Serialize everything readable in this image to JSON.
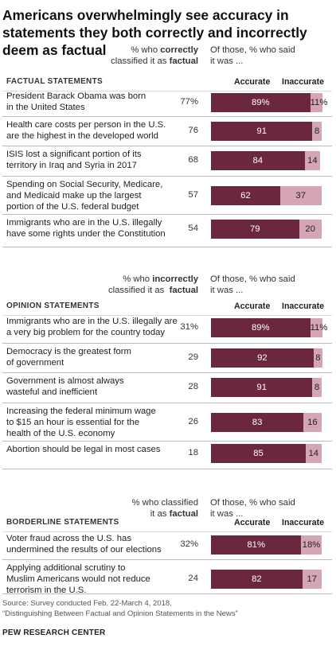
{
  "chart_data": {
    "type": "bar",
    "title": "Americans overwhelmingly see accuracy in statements they both correctly and incorrectly deem as factual",
    "legend": [
      "Accurate",
      "Inaccurate"
    ],
    "colors": {
      "accurate": "#6b2740",
      "inaccurate": "#d4a5b3"
    },
    "sections": [
      {
        "label": "FACTUAL STATEMENTS",
        "header_left": [
          "% who ",
          "correctly",
          "classified it as ",
          "factual"
        ],
        "header_right": [
          "Of those, % who said",
          "it was ..."
        ],
        "col_accurate": "Accurate",
        "col_inaccurate": "Inaccurate",
        "rows": [
          {
            "statement": [
              "President Barack Obama was born",
              "in the United States"
            ],
            "pct": "77%",
            "accurate": 89,
            "inaccurate": 11,
            "acc_label": "89%",
            "inacc_label": "11%"
          },
          {
            "statement": [
              "Health care costs per person in the U.S.",
              "are the highest in the developed world"
            ],
            "pct": "76",
            "accurate": 91,
            "inaccurate": 8,
            "acc_label": "91",
            "inacc_label": "8"
          },
          {
            "statement": [
              "ISIS lost a significant portion of its",
              "territory in Iraq and Syria in 2017"
            ],
            "pct": "68",
            "accurate": 84,
            "inaccurate": 14,
            "acc_label": "84",
            "inacc_label": "14"
          },
          {
            "statement": [
              "Spending on Social Security, Medicare,",
              "and Medicaid make up the largest",
              "portion of the U.S. federal budget"
            ],
            "pct": "57",
            "accurate": 62,
            "inaccurate": 37,
            "acc_label": "62",
            "inacc_label": "37"
          },
          {
            "statement": [
              "Immigrants who are in the U.S. illegally",
              "have some rights under the Constitution"
            ],
            "pct": "54",
            "accurate": 79,
            "inaccurate": 20,
            "acc_label": "79",
            "inacc_label": "20"
          }
        ]
      },
      {
        "label": "OPINION STATEMENTS",
        "header_left": [
          "% who ",
          "incorrectly",
          "classified it as  ",
          "factual"
        ],
        "header_right": [
          "Of those, % who said",
          "it was ..."
        ],
        "col_accurate": "Accurate",
        "col_inaccurate": "Inaccurate",
        "rows": [
          {
            "statement": [
              "Immigrants who are in the U.S. illegally are",
              "a very big problem for the country today"
            ],
            "pct": "31%",
            "accurate": 89,
            "inaccurate": 11,
            "acc_label": "89%",
            "inacc_label": "11%"
          },
          {
            "statement": [
              "Democracy is the greatest form",
              "of government"
            ],
            "pct": "29",
            "accurate": 92,
            "inaccurate": 8,
            "acc_label": "92",
            "inacc_label": "8"
          },
          {
            "statement": [
              "Government is almost always",
              "wasteful and inefficient"
            ],
            "pct": "28",
            "accurate": 91,
            "inaccurate": 8,
            "acc_label": "91",
            "inacc_label": "8"
          },
          {
            "statement": [
              "Increasing the federal minimum wage",
              "to $15 an hour is essential for the",
              "health of the U.S. economy"
            ],
            "pct": "26",
            "accurate": 83,
            "inaccurate": 16,
            "acc_label": "83",
            "inacc_label": "16"
          },
          {
            "statement": [
              "Abortion should be legal in most cases"
            ],
            "pct": "18",
            "accurate": 85,
            "inaccurate": 14,
            "acc_label": "85",
            "inacc_label": "14"
          }
        ]
      },
      {
        "label": "BORDERLINE STATEMENTS",
        "header_left": [
          "% who classified",
          "",
          "it as ",
          "factual"
        ],
        "header_right": [
          "Of those, % who said",
          "it was ..."
        ],
        "col_accurate": "Accurate",
        "col_inaccurate": "Inaccurate",
        "rows": [
          {
            "statement": [
              "Voter fraud across the U.S. has",
              "undermined the results of our elections"
            ],
            "pct": "32%",
            "accurate": 81,
            "inaccurate": 18,
            "acc_label": "81%",
            "inacc_label": "18%"
          },
          {
            "statement": [
              "Applying additional scrutiny to",
              "Muslim Americans would not reduce",
              "terrorism in the U.S."
            ],
            "pct": "24",
            "accurate": 82,
            "inaccurate": 17,
            "acc_label": "82",
            "inacc_label": "17"
          }
        ]
      }
    ]
  },
  "footer": {
    "source": "Source: Survey conducted Feb. 22-March 4, 2018.",
    "report": "“Distinguishing Between Factual and Opinion Statements in the News”",
    "brand": "PEW RESEARCH CENTER"
  }
}
